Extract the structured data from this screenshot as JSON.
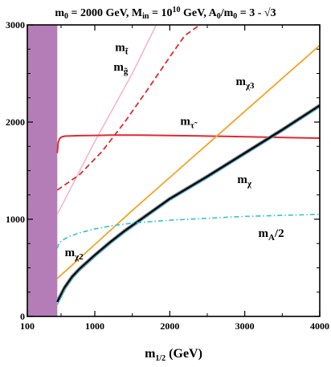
{
  "chart_data": {
    "type": "line",
    "title": "m₀ = 2000 GeV, M_in = 10¹⁰ GeV, A₀/m₀ = 3 - √3",
    "title_parts": {
      "m0": "m",
      "m0_sub": "0",
      "m0_eq": " = 2000 GeV, M",
      "min_sub": "in",
      "min_eq": " = 10",
      "min_sup": "10",
      "a0": " GeV, A",
      "a0_sub": "0",
      "a0_rest": "/m",
      "m0b_sub": "0",
      "tail": " = 3 - √3"
    },
    "xlabel": "m_{1/2} (GeV)",
    "xlabel_parts": {
      "base": "m",
      "sub": "1/2",
      "rest": " (GeV)"
    },
    "ylabel": "",
    "xlim": [
      100,
      4000
    ],
    "ylim": [
      0,
      3000
    ],
    "x_ticks": [
      100,
      1000,
      2000,
      3000,
      4000
    ],
    "x_tick_labels": [
      "100",
      "1000",
      "2000",
      "3000",
      "4000"
    ],
    "y_ticks": [
      0,
      1000,
      2000,
      3000
    ],
    "y_tick_labels": [
      "0",
      "1000",
      "2000",
      "3000"
    ],
    "grid": false,
    "excluded_region": {
      "x": [
        100,
        500
      ],
      "color": "#b57db8"
    },
    "series": [
      {
        "key": "gluino",
        "color": "#f4b6c8",
        "dash": "solid",
        "width": 1.6,
        "x": [
          500,
          1000,
          1500,
          1820
        ],
        "y": [
          1050,
          1800,
          2500,
          3000
        ]
      },
      {
        "key": "stop",
        "color": "#e3282e",
        "dash": "dashed",
        "width": 1.8,
        "x": [
          500,
          800,
          1100,
          1400,
          1700,
          2000,
          2200,
          2400
        ],
        "y": [
          1300,
          1460,
          1700,
          2000,
          2330,
          2670,
          2890,
          3000
        ]
      },
      {
        "key": "stau",
        "color": "#e3282e",
        "dash": "solid",
        "width": 2,
        "x": [
          500,
          510,
          530,
          560,
          600,
          800,
          1200,
          1600,
          2000,
          2400,
          2800,
          3200,
          3600,
          4000
        ],
        "y": [
          1680,
          1780,
          1830,
          1848,
          1855,
          1860,
          1865,
          1866,
          1862,
          1857,
          1852,
          1846,
          1840,
          1835
        ]
      },
      {
        "key": "chi3",
        "color": "#f4a321",
        "dash": "solid",
        "width": 1.8,
        "x": [
          500,
          1000,
          1500,
          2000,
          2500,
          3000,
          3500,
          4000
        ],
        "y": [
          390,
          740,
          1090,
          1430,
          1770,
          2110,
          2450,
          2790
        ]
      },
      {
        "key": "chi",
        "color": "#000000",
        "dash": "solid",
        "width": 2.4,
        "x": [
          500,
          600,
          700,
          800,
          1000,
          1200,
          1400,
          1600,
          1800,
          2000,
          2500,
          3000,
          3500,
          4000
        ],
        "y": [
          150,
          300,
          410,
          490,
          630,
          760,
          880,
          990,
          1100,
          1210,
          1440,
          1680,
          1920,
          2170
        ]
      },
      {
        "key": "chi2",
        "color": "#2aa8d8",
        "dash": "solid",
        "width": 1,
        "x": [
          500,
          600,
          700,
          800,
          1000,
          1200,
          1400,
          1600,
          1800,
          2000,
          2500,
          3000,
          3500,
          4000
        ],
        "y": [
          120,
          280,
          390,
          475,
          615,
          745,
          865,
          975,
          1085,
          1195,
          1425,
          1665,
          1905,
          2155
        ]
      },
      {
        "key": "mA2",
        "color": "#2ec4d6",
        "dash": "dashdot",
        "width": 1.6,
        "x": [
          500,
          520,
          560,
          650,
          800,
          1000,
          1200,
          1500,
          2000,
          2500,
          3000,
          3500,
          4000
        ],
        "y": [
          700,
          750,
          780,
          820,
          860,
          900,
          930,
          960,
          990,
          1010,
          1030,
          1040,
          1050
        ]
      }
    ],
    "annotations": [
      {
        "key": "gluino",
        "base": "m",
        "sub": "g̃",
        "at": [
          1250,
          2530
        ]
      },
      {
        "key": "stop",
        "base": "m",
        "sub": "t̃",
        "at": [
          1270,
          2730
        ]
      },
      {
        "key": "stau",
        "base": "m",
        "sub": "τ̃",
        "at": [
          2140,
          1970
        ]
      },
      {
        "key": "chi3",
        "base": "m",
        "sub": "χ3",
        "at": [
          2880,
          2380
        ]
      },
      {
        "key": "chi",
        "base": "m",
        "sub": "χ",
        "at": [
          2900,
          1370
        ]
      },
      {
        "key": "mA2",
        "base": "m",
        "sub": "A",
        "rest": "/2",
        "at": [
          3180,
          820
        ]
      },
      {
        "key": "chi2",
        "base": "m",
        "sub": "χ2",
        "at": [
          600,
          620
        ]
      }
    ]
  }
}
